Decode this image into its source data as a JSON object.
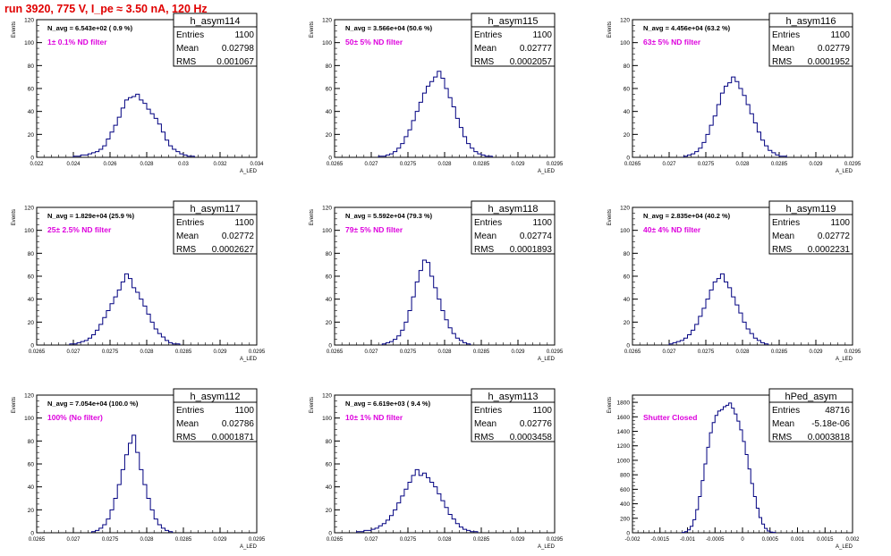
{
  "page": {
    "title": "run 3920,   775 V, I_pe ≈ 3.50 nA, 120 Hz"
  },
  "style": {
    "hist_color": "#000080",
    "note_color": "#dd00dd",
    "title_color": "#e00000"
  },
  "chart_data": [
    {
      "type": "histogram",
      "title": "h_asym114",
      "ylabel": "Events",
      "xlabel": "A_LED",
      "xlim": [
        0.022,
        0.034
      ],
      "ylim": [
        0,
        120
      ],
      "xticks": [
        "0.022",
        "0.024",
        "0.026",
        "0.028",
        "0.03",
        "0.032",
        "0.034"
      ],
      "yticks": [
        "0",
        "20",
        "40",
        "60",
        "80",
        "100",
        "120"
      ],
      "stats": {
        "entries_label": "Entries",
        "entries": "1100",
        "mean_label": "Mean",
        "mean": "0.02798",
        "rms_label": "RMS",
        "rms": "0.001067"
      },
      "n_avg": "N_avg = 6.543e+02 ( 0.9 %)",
      "note": "1± 0.1% ND filter",
      "bins": {
        "start": 0.024,
        "width": 0.0002,
        "counts": [
          1,
          1,
          2,
          2,
          3,
          4,
          5,
          7,
          10,
          16,
          22,
          28,
          35,
          43,
          50,
          52,
          53,
          55,
          50,
          47,
          42,
          38,
          34,
          29,
          22,
          15,
          10,
          7,
          5,
          3,
          2,
          1,
          1
        ]
      }
    },
    {
      "type": "histogram",
      "title": "h_asym115",
      "ylabel": "Events",
      "xlabel": "A_LED",
      "xlim": [
        0.0265,
        0.0295
      ],
      "ylim": [
        0,
        120
      ],
      "xticks": [
        "0.0265",
        "0.027",
        "0.0275",
        "0.028",
        "0.0285",
        "0.029",
        "0.0295"
      ],
      "yticks": [
        "0",
        "20",
        "40",
        "60",
        "80",
        "100",
        "120"
      ],
      "stats": {
        "entries_label": "Entries",
        "entries": "1100",
        "mean_label": "Mean",
        "mean": "0.02777",
        "rms_label": "RMS",
        "rms": "0.0002057"
      },
      "n_avg": "N_avg = 3.566e+04 (50.6 %)",
      "note": "50± 5% ND filter",
      "bins": {
        "start": 0.0271,
        "width": 5e-05,
        "counts": [
          1,
          1,
          2,
          3,
          5,
          8,
          12,
          18,
          24,
          32,
          40,
          48,
          56,
          62,
          66,
          70,
          75,
          69,
          60,
          52,
          44,
          34,
          26,
          18,
          12,
          8,
          5,
          3,
          2,
          1,
          1
        ]
      }
    },
    {
      "type": "histogram",
      "title": "h_asym116",
      "ylabel": "Events",
      "xlabel": "A_LED",
      "xlim": [
        0.0265,
        0.0295
      ],
      "ylim": [
        0,
        120
      ],
      "xticks": [
        "0.0265",
        "0.027",
        "0.0275",
        "0.028",
        "0.0285",
        "0.029",
        "0.0295"
      ],
      "yticks": [
        "0",
        "20",
        "40",
        "60",
        "80",
        "100",
        "120"
      ],
      "stats": {
        "entries_label": "Entries",
        "entries": "1100",
        "mean_label": "Mean",
        "mean": "0.02779",
        "rms_label": "RMS",
        "rms": "0.0001952"
      },
      "n_avg": "N_avg = 4.456e+04 (63.2 %)",
      "note": "63± 5% ND filter",
      "bins": {
        "start": 0.0272,
        "width": 5e-05,
        "counts": [
          1,
          2,
          3,
          5,
          8,
          13,
          20,
          28,
          36,
          46,
          56,
          62,
          65,
          70,
          66,
          60,
          54,
          46,
          38,
          30,
          22,
          15,
          10,
          6,
          4,
          2,
          1,
          1
        ]
      }
    },
    {
      "type": "histogram",
      "title": "h_asym117",
      "ylabel": "Events",
      "xlabel": "A_LED",
      "xlim": [
        0.0265,
        0.0295
      ],
      "ylim": [
        0,
        120
      ],
      "xticks": [
        "0.0265",
        "0.027",
        "0.0275",
        "0.028",
        "0.0285",
        "0.029",
        "0.0295"
      ],
      "yticks": [
        "0",
        "20",
        "40",
        "60",
        "80",
        "100",
        "120"
      ],
      "stats": {
        "entries_label": "Entries",
        "entries": "1100",
        "mean_label": "Mean",
        "mean": "0.02772",
        "rms_label": "RMS",
        "rms": "0.0002627"
      },
      "n_avg": "N_avg = 1.829e+04 (25.9 %)",
      "note": "25± 2.5% ND filter",
      "bins": {
        "start": 0.02695,
        "width": 5e-05,
        "counts": [
          1,
          1,
          2,
          3,
          4,
          6,
          9,
          13,
          18,
          24,
          30,
          36,
          42,
          48,
          55,
          62,
          58,
          50,
          46,
          40,
          34,
          27,
          20,
          14,
          10,
          7,
          4,
          2,
          1,
          1
        ]
      }
    },
    {
      "type": "histogram",
      "title": "h_asym118",
      "ylabel": "Events",
      "xlabel": "A_LED",
      "xlim": [
        0.0265,
        0.0295
      ],
      "ylim": [
        0,
        120
      ],
      "xticks": [
        "0.0265",
        "0.027",
        "0.0275",
        "0.028",
        "0.0285",
        "0.029",
        "0.0295"
      ],
      "yticks": [
        "0",
        "20",
        "40",
        "60",
        "80",
        "100",
        "120"
      ],
      "stats": {
        "entries_label": "Entries",
        "entries": "1100",
        "mean_label": "Mean",
        "mean": "0.02774",
        "rms_label": "RMS",
        "rms": "0.0001893"
      },
      "n_avg": "N_avg = 5.592e+04 (79.3 %)",
      "note": "79± 5% ND filter",
      "bins": {
        "start": 0.02715,
        "width": 5e-05,
        "counts": [
          1,
          2,
          3,
          5,
          8,
          13,
          20,
          30,
          42,
          55,
          65,
          74,
          72,
          60,
          50,
          40,
          30,
          22,
          15,
          10,
          6,
          4,
          2,
          1
        ]
      }
    },
    {
      "type": "histogram",
      "title": "h_asym119",
      "ylabel": "Events",
      "xlabel": "A_LED",
      "xlim": [
        0.0265,
        0.0295
      ],
      "ylim": [
        0,
        120
      ],
      "xticks": [
        "0.0265",
        "0.027",
        "0.0275",
        "0.028",
        "0.0285",
        "0.029",
        "0.0295"
      ],
      "yticks": [
        "0",
        "20",
        "40",
        "60",
        "80",
        "100",
        "120"
      ],
      "stats": {
        "entries_label": "Entries",
        "entries": "1100",
        "mean_label": "Mean",
        "mean": "0.02772",
        "rms_label": "RMS",
        "rms": "0.0002231"
      },
      "n_avg": "N_avg = 2.835e+04 (40.2 %)",
      "note": "40± 4% ND filter",
      "bins": {
        "start": 0.027,
        "width": 5e-05,
        "counts": [
          1,
          2,
          3,
          4,
          6,
          9,
          13,
          18,
          25,
          32,
          40,
          48,
          55,
          58,
          62,
          55,
          50,
          42,
          35,
          28,
          20,
          14,
          10,
          6,
          4,
          2,
          1
        ]
      }
    },
    {
      "type": "histogram",
      "title": "h_asym112",
      "ylabel": "Events",
      "xlabel": "A_LED",
      "xlim": [
        0.0265,
        0.0295
      ],
      "ylim": [
        0,
        120
      ],
      "xticks": [
        "0.0265",
        "0.027",
        "0.0275",
        "0.028",
        "0.0285",
        "0.029",
        "0.0295"
      ],
      "yticks": [
        "0",
        "20",
        "40",
        "60",
        "80",
        "100",
        "120"
      ],
      "stats": {
        "entries_label": "Entries",
        "entries": "1100",
        "mean_label": "Mean",
        "mean": "0.02786",
        "rms_label": "RMS",
        "rms": "0.0001871"
      },
      "n_avg": "N_avg = 7.054e+04 (100.0 %)",
      "note": "100% (No filter)",
      "bins": {
        "start": 0.02725,
        "width": 5e-05,
        "counts": [
          1,
          2,
          4,
          7,
          12,
          20,
          30,
          42,
          55,
          68,
          78,
          85,
          70,
          55,
          42,
          30,
          20,
          12,
          7,
          4,
          2,
          1
        ]
      }
    },
    {
      "type": "histogram",
      "title": "h_asym113",
      "ylabel": "Events",
      "xlabel": "A_LED",
      "xlim": [
        0.0265,
        0.0295
      ],
      "ylim": [
        0,
        120
      ],
      "xticks": [
        "0.0265",
        "0.027",
        "0.0275",
        "0.028",
        "0.0285",
        "0.029",
        "0.0295"
      ],
      "yticks": [
        "0",
        "20",
        "40",
        "60",
        "80",
        "100",
        "120"
      ],
      "stats": {
        "entries_label": "Entries",
        "entries": "1100",
        "mean_label": "Mean",
        "mean": "0.02776",
        "rms_label": "RMS",
        "rms": "0.0003458"
      },
      "n_avg": "N_avg = 6.619e+03 ( 9.4 %)",
      "note": "10± 1% ND filter",
      "bins": {
        "start": 0.0268,
        "width": 5e-05,
        "counts": [
          1,
          1,
          2,
          2,
          3,
          4,
          6,
          8,
          11,
          15,
          20,
          26,
          32,
          38,
          44,
          50,
          55,
          50,
          52,
          48,
          44,
          40,
          34,
          28,
          22,
          16,
          12,
          8,
          5,
          3,
          2,
          1,
          1
        ]
      }
    },
    {
      "type": "histogram",
      "title": "hPed_asym",
      "ylabel": "Events",
      "xlabel": "A_LED",
      "xlim": [
        -0.002,
        0.002
      ],
      "ylim": [
        0,
        1900
      ],
      "xticks": [
        "-0.002",
        "-0.0015",
        "-0.001",
        "-0.0005",
        "0",
        "0.0005",
        "0.001",
        "0.0015",
        "0.002"
      ],
      "yticks": [
        "0",
        "200",
        "400",
        "600",
        "800",
        "1000",
        "1200",
        "1400",
        "1600",
        "1800"
      ],
      "stats": {
        "entries_label": "Entries",
        "entries": "48716",
        "mean_label": "Mean",
        "mean": "-5.18e-06",
        "rms_label": "RMS",
        "rms": "0.0003818"
      },
      "n_avg": "",
      "note": "Shutter Closed",
      "bins": {
        "start": -0.0011,
        "width": 5e-05,
        "counts": [
          5,
          15,
          40,
          90,
          180,
          320,
          500,
          720,
          950,
          1180,
          1380,
          1520,
          1620,
          1680,
          1700,
          1740,
          1760,
          1790,
          1720,
          1640,
          1540,
          1420,
          1260,
          1080,
          880,
          680,
          500,
          340,
          210,
          120,
          60,
          25,
          10,
          4
        ]
      }
    }
  ]
}
